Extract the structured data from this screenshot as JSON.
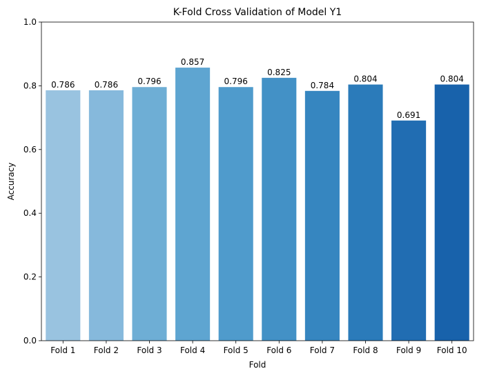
{
  "chart_data": {
    "type": "bar",
    "title": "K-Fold Cross Validation of Model Y1",
    "xlabel": "Fold",
    "ylabel": "Accuracy",
    "categories": [
      "Fold 1",
      "Fold 2",
      "Fold 3",
      "Fold 4",
      "Fold 5",
      "Fold 6",
      "Fold 7",
      "Fold 8",
      "Fold 9",
      "Fold 10"
    ],
    "values": [
      0.786,
      0.786,
      0.796,
      0.857,
      0.796,
      0.825,
      0.784,
      0.804,
      0.691,
      0.804
    ],
    "value_labels": [
      "0.786",
      "0.786",
      "0.796",
      "0.857",
      "0.796",
      "0.825",
      "0.784",
      "0.804",
      "0.691",
      "0.804"
    ],
    "ylim": [
      0,
      1
    ],
    "yticks": [
      0,
      0.2,
      0.4,
      0.6,
      0.8,
      1.0
    ],
    "ytick_labels": [
      "0.0",
      "0.2",
      "0.4",
      "0.6",
      "0.8",
      "1.0"
    ],
    "grid": false,
    "legend": "none",
    "colors": [
      "#99c3e0",
      "#86b9dc",
      "#6eaed5",
      "#5ea5d1",
      "#4f9bcc",
      "#4391c6",
      "#3686c0",
      "#2b7bba",
      "#216db2",
      "#1862ab"
    ]
  }
}
